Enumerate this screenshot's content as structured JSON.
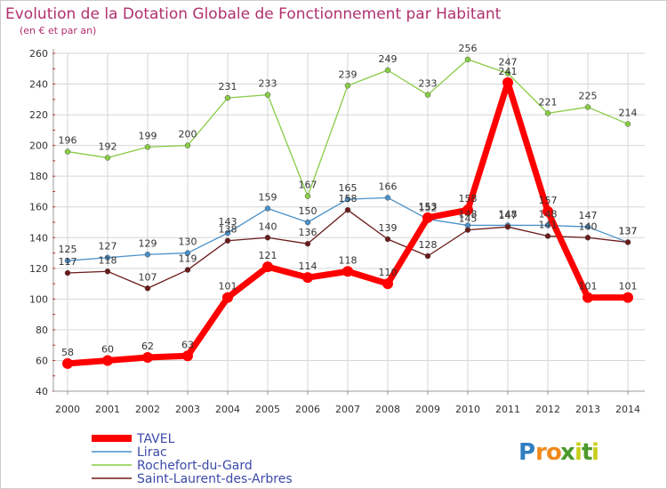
{
  "chart_data": {
    "type": "line",
    "title": "Evolution de la Dotation Globale de Fonctionnement par Habitant",
    "subtitle": "(en € et par an)",
    "xlabel": "",
    "ylabel": "",
    "ylim": [
      40,
      260
    ],
    "yticks": [
      40,
      60,
      80,
      100,
      120,
      140,
      160,
      180,
      200,
      220,
      240,
      260
    ],
    "categories": [
      "2000",
      "2001",
      "2002",
      "2003",
      "2004",
      "2005",
      "2006",
      "2007",
      "2008",
      "2009",
      "2010",
      "2011",
      "2012",
      "2013",
      "2014"
    ],
    "series": [
      {
        "name": "TAVEL",
        "color": "#ff0000",
        "values": [
          58,
          60,
          62,
          63,
          101,
          121,
          114,
          118,
          110,
          153,
          158,
          241,
          157,
          101,
          101
        ]
      },
      {
        "name": "Lirac",
        "color": "#4a90c8",
        "values": [
          125,
          127,
          129,
          130,
          143,
          159,
          150,
          165,
          166,
          152,
          148,
          148,
          148,
          147,
          137
        ]
      },
      {
        "name": "Rochefort-du-Gard",
        "color": "#88cc44",
        "values": [
          196,
          192,
          199,
          200,
          231,
          233,
          167,
          239,
          249,
          233,
          256,
          247,
          221,
          225,
          214
        ]
      },
      {
        "name": "Saint-Laurent-des-Arbres",
        "color": "#6b1a1a",
        "values": [
          117,
          118,
          107,
          119,
          138,
          140,
          136,
          158,
          139,
          128,
          145,
          147,
          141,
          140,
          137
        ]
      }
    ],
    "legend_position": "bottom-left",
    "grid": true
  },
  "branding": {
    "logo_letters": [
      "P",
      "r",
      "o",
      "x",
      "i",
      "t",
      "i"
    ],
    "logo_colors": [
      "#2f7fc1",
      "#f08a1c",
      "#f08a1c",
      "#4c9a2a",
      "#c8cf1a",
      "#4c9a2a",
      "#c8cf1a"
    ]
  }
}
